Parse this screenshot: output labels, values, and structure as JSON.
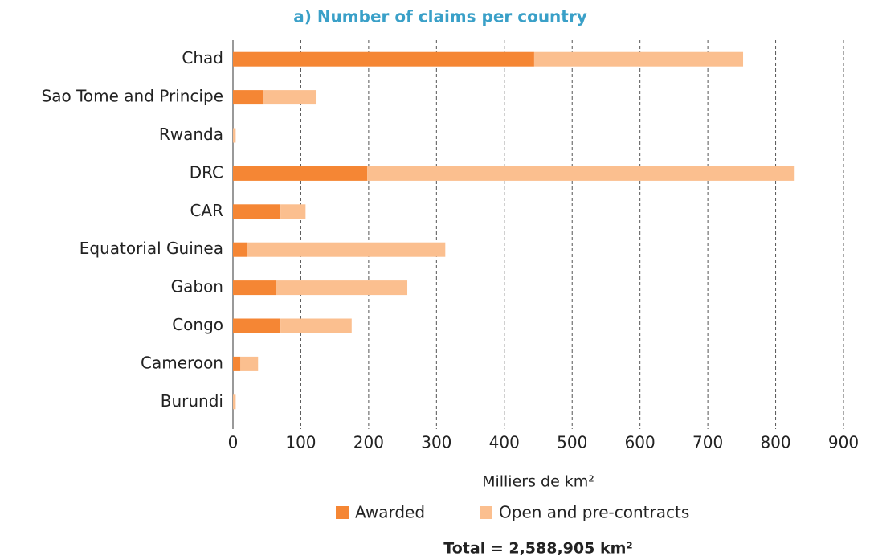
{
  "chart_data": {
    "type": "stacked_barh",
    "title": "a) Number of claims per country",
    "x_label": "Milliers de km²",
    "annotation": "Total = 2,588,905 km²",
    "categories": [
      "Chad",
      "Sao Tome and Principe",
      "Rwanda",
      "DRC",
      "CAR",
      "Equatorial Guinea",
      "Gabon",
      "Congo",
      "Cameroon",
      "Burundi"
    ],
    "series": [
      {
        "name": "Awarded",
        "color": "#f58634",
        "values": [
          444,
          44,
          0,
          198,
          70,
          21,
          63,
          70,
          11,
          0
        ]
      },
      {
        "name": "Open and pre-contracts",
        "color": "#fbbf8f",
        "values": [
          308,
          78,
          4,
          630,
          37,
          292,
          194,
          105,
          26,
          4
        ]
      }
    ],
    "xlim": [
      0,
      900
    ],
    "xticks": [
      0,
      100,
      200,
      300,
      400,
      500,
      600,
      700,
      800,
      900
    ],
    "grid": true,
    "legend": "bottom"
  }
}
